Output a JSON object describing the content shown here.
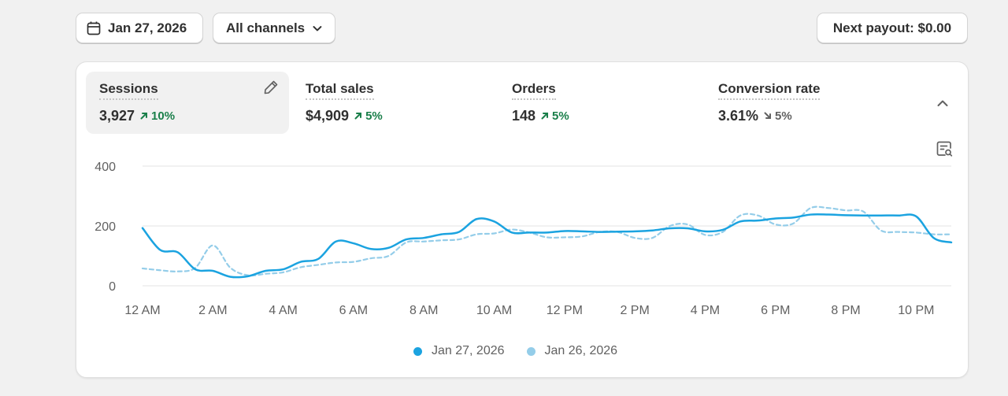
{
  "toolbar": {
    "date_label": "Jan 27, 2026",
    "channel_label": "All channels",
    "payout_label": "Next payout: $0.00"
  },
  "metrics": [
    {
      "label": "Sessions",
      "value": "3,927",
      "change": "10%",
      "direction": "up"
    },
    {
      "label": "Total sales",
      "value": "$4,909",
      "change": "5%",
      "direction": "up"
    },
    {
      "label": "Orders",
      "value": "148",
      "change": "5%",
      "direction": "up"
    },
    {
      "label": "Conversion rate",
      "value": "3.61%",
      "change": "5%",
      "direction": "down"
    }
  ],
  "colors": {
    "current": "#1ba3e0",
    "previous": "#94cde9",
    "up": "#1a7f4a",
    "down": "#616161"
  },
  "chart_data": {
    "type": "line",
    "title": "",
    "xlabel": "",
    "ylabel": "",
    "ylim": [
      0,
      400
    ],
    "yticks": [
      "400",
      "200",
      "0"
    ],
    "xticks": [
      "12 AM",
      "2 AM",
      "4 AM",
      "6 AM",
      "8 AM",
      "10 AM",
      "12 PM",
      "2 PM",
      "4 PM",
      "6 PM",
      "8 PM",
      "10 PM"
    ],
    "x": [
      0,
      0.5,
      1,
      1.5,
      2,
      2.5,
      3,
      3.5,
      4,
      4.5,
      5,
      5.5,
      6,
      6.5,
      7,
      7.5,
      8,
      8.5,
      9,
      9.5,
      10,
      10.5,
      11,
      11.5,
      12,
      12.5,
      13,
      13.5,
      14,
      14.5,
      15,
      15.5,
      16,
      16.5,
      17,
      17.5,
      18,
      18.5,
      19,
      19.5,
      20,
      20.5,
      21,
      21.5,
      22,
      22.5,
      23
    ],
    "series": [
      {
        "name": "Jan 27, 2026",
        "values": [
          193,
          120,
          112,
          55,
          50,
          30,
          32,
          50,
          55,
          80,
          90,
          148,
          142,
          123,
          127,
          155,
          160,
          172,
          180,
          223,
          215,
          178,
          178,
          178,
          183,
          182,
          180,
          181,
          182,
          185,
          192,
          192,
          182,
          187,
          215,
          218,
          225,
          228,
          238,
          238,
          236,
          235,
          235,
          235,
          232,
          160,
          145
        ]
      },
      {
        "name": "Jan 26, 2026",
        "values": [
          58,
          52,
          48,
          60,
          135,
          60,
          35,
          40,
          45,
          62,
          70,
          78,
          80,
          92,
          100,
          145,
          148,
          152,
          155,
          172,
          175,
          188,
          178,
          162,
          162,
          165,
          180,
          180,
          160,
          160,
          200,
          205,
          170,
          180,
          235,
          235,
          205,
          208,
          260,
          260,
          252,
          248,
          185,
          180,
          178,
          172,
          172
        ]
      }
    ]
  }
}
